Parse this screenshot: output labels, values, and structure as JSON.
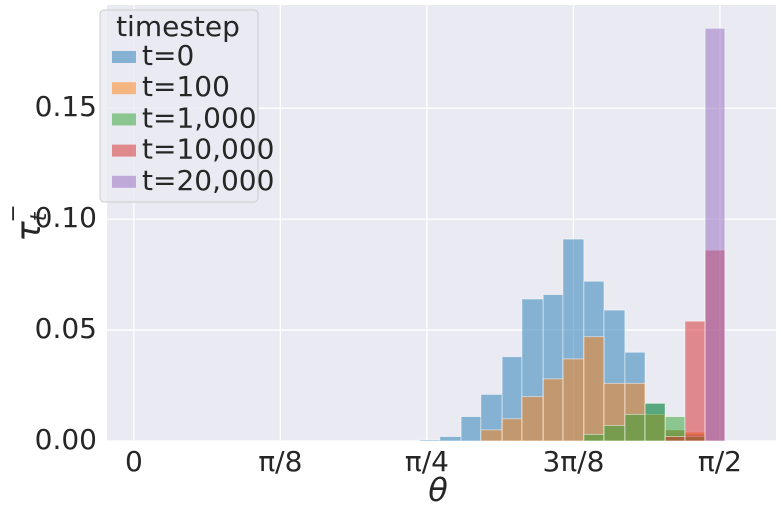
{
  "chart_data": {
    "type": "histogram",
    "xlabel": "θ",
    "ylabel": "τ",
    "ylabel_sub": "t",
    "ylabel_sup": "−",
    "legend_title": "timestep",
    "legend": "upper left",
    "grid": true,
    "bins": [
      0.767,
      0.82,
      0.877,
      0.93,
      0.987,
      1.04,
      1.097,
      1.15,
      1.206,
      1.26,
      1.316,
      1.37,
      1.424,
      1.477,
      1.531,
      1.584
    ],
    "series": [
      {
        "name": "t=0",
        "color": "#1f77b4",
        "values": [
          0.0005,
          0.002,
          0.011,
          0.021,
          0.038,
          0.064,
          0.066,
          0.091,
          0.072,
          0.059,
          0.04,
          0.017,
          0.005,
          0.003,
          0
        ]
      },
      {
        "name": "t=100",
        "color": "#ff7f0e",
        "values": [
          0,
          0,
          0,
          0.005,
          0.01,
          0.02,
          0.028,
          0.037,
          0.047,
          0.026,
          0.026,
          0.012,
          0.005,
          0.004,
          0
        ]
      },
      {
        "name": "t=1,000",
        "color": "#2ca02c",
        "values": [
          0,
          0,
          0,
          0,
          0,
          0,
          0,
          0,
          0.003,
          0.007,
          0.012,
          0.017,
          0.011,
          0.002,
          0
        ]
      },
      {
        "name": "t=10,000",
        "color": "#d62728",
        "values": [
          0,
          0,
          0,
          0,
          0,
          0,
          0,
          0,
          0,
          0,
          0,
          0,
          0.002,
          0.054,
          0.086
        ]
      },
      {
        "name": "t=20,000",
        "color": "#9467bd",
        "values": [
          0,
          0,
          0,
          0,
          0,
          0,
          0,
          0,
          0,
          0,
          0,
          0,
          0,
          0,
          0.186
        ]
      }
    ],
    "xlim": [
      -0.072,
      1.721
    ],
    "xticks": [
      0,
      {
        "value": 0.3927,
        "label": "π/8"
      },
      {
        "value": 0.7854,
        "label": "π/4"
      },
      {
        "value": 1.1781,
        "label": "3π/8"
      },
      {
        "value": 1.5708,
        "label": "π/2"
      }
    ],
    "ylim": [
      0,
      0.1965
    ],
    "yticks": [
      {
        "value": 0,
        "label": "0.00"
      },
      {
        "value": 0.05,
        "label": "0.05"
      },
      {
        "value": 0.1,
        "label": "0.10"
      },
      {
        "value": 0.15,
        "label": "0.15"
      }
    ]
  }
}
